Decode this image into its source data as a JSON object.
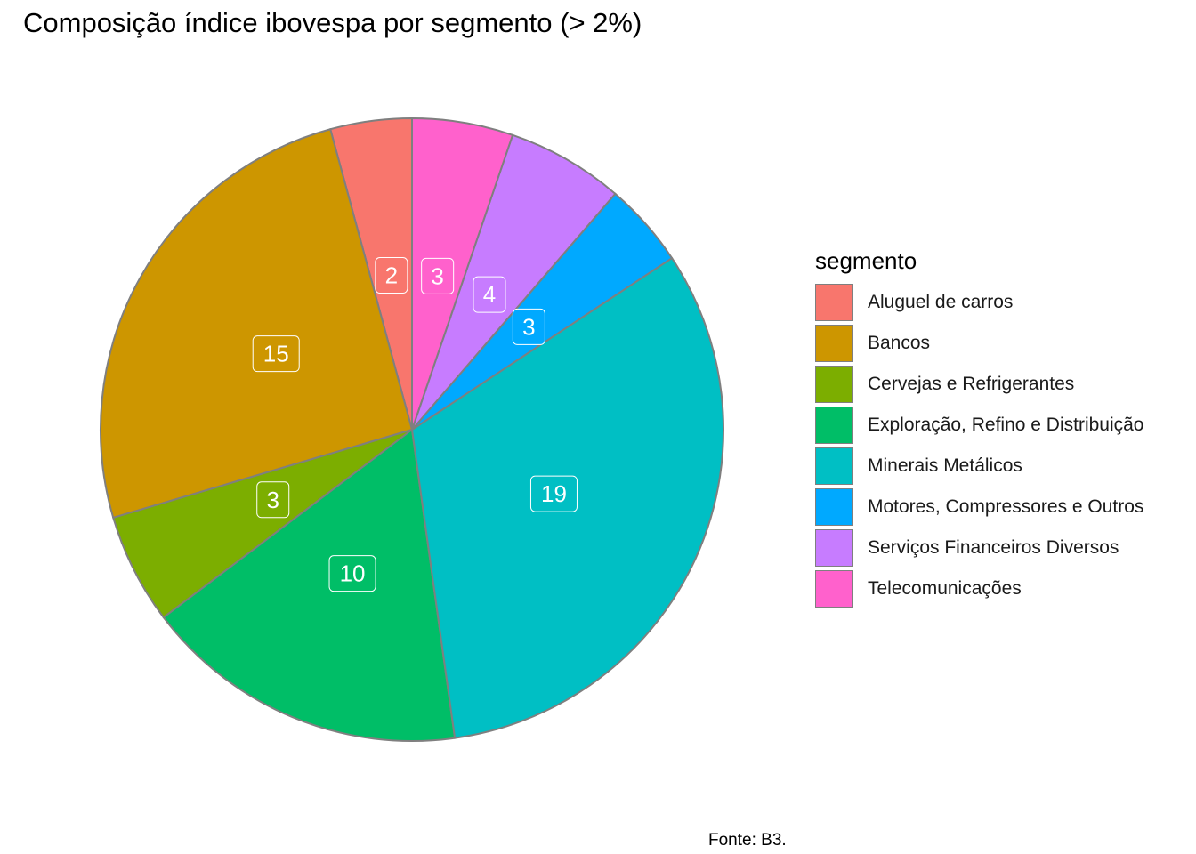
{
  "chart_data": {
    "type": "pie",
    "title": "Composição índice ibovespa por segmento (> 2%)",
    "legend_title": "segmento",
    "legend_position": "right",
    "caption": "Fonte: B3.",
    "categories": [
      "Aluguel de carros",
      "Bancos",
      "Cervejas e Refrigerantes",
      "Exploração, Refino e Distribuição",
      "Minerais Metálicos",
      "Motores, Compressores e Outros",
      "Serviços Financeiros Diversos",
      "Telecomunicações"
    ],
    "values": [
      2.5,
      15,
      3.4,
      10,
      19,
      2.6,
      3.6,
      3.1
    ],
    "labels": [
      "2",
      "15",
      "3",
      "10",
      "19",
      "3",
      "4",
      "3"
    ],
    "colors": [
      "#F8766D",
      "#CD9600",
      "#7CAE00",
      "#00BE67",
      "#00BFC4",
      "#00A9FF",
      "#C77CFF",
      "#FF61CC"
    ],
    "slice_order_counterclockwise_from_top": [
      0,
      1,
      2,
      3,
      4,
      5,
      6,
      7
    ],
    "slice_border_color": "#7f7f7f"
  }
}
